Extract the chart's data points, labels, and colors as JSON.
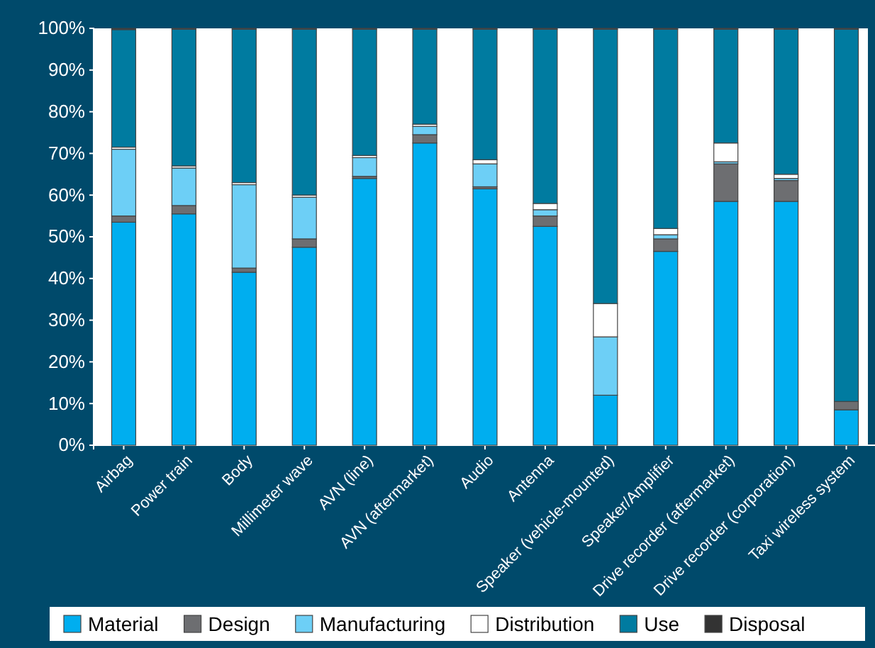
{
  "chart_data": {
    "type": "bar",
    "stacked": true,
    "categories": [
      "Airbag",
      "Power train",
      "Body",
      "Millimeter wave",
      "AVN (line)",
      "AVN (aftermarket)",
      "Audio",
      "Antenna",
      "Speaker (vehicle-mounted)",
      "Speaker/Amplifier",
      "Drive recorder (aftermarket)",
      "Drive recorder (corporation)",
      "Taxi wireless system"
    ],
    "series": [
      {
        "name": "Material",
        "color": "#00aeef",
        "values": [
          53.5,
          55.5,
          41.5,
          47.5,
          64,
          72.5,
          61.5,
          52.5,
          12,
          46.5,
          58.5,
          58.5,
          8.5
        ]
      },
      {
        "name": "Design",
        "color": "#6d6e71",
        "values": [
          1.5,
          2,
          1,
          2,
          0.5,
          2,
          0.5,
          2.5,
          0,
          3,
          9,
          5,
          2
        ]
      },
      {
        "name": "Manufacturing",
        "color": "#6dcff6",
        "values": [
          16,
          9,
          20,
          10,
          4.5,
          2,
          5.5,
          1.5,
          14,
          1,
          0.5,
          0.5,
          0
        ]
      },
      {
        "name": "Distribution",
        "color": "#ffffff",
        "values": [
          0.5,
          0.5,
          0.5,
          0.5,
          0.5,
          0.5,
          1,
          1.5,
          8,
          1.5,
          4.5,
          1,
          0
        ]
      },
      {
        "name": "Use",
        "color": "#007ba0",
        "values": [
          28.2,
          32.8,
          36.8,
          39.8,
          30.3,
          22.8,
          31.3,
          41.8,
          65.8,
          47.8,
          27.3,
          34.8,
          89.3
        ]
      },
      {
        "name": "Disposal",
        "color": "#333333",
        "values": [
          0.3,
          0.2,
          0.2,
          0.2,
          0.2,
          0.2,
          0.2,
          0.2,
          0.2,
          0.2,
          0.2,
          0.2,
          0.2
        ]
      }
    ],
    "ylim": [
      0,
      100
    ],
    "yticks": [
      {
        "value": 0,
        "label": "0%"
      },
      {
        "value": 10,
        "label": "10%"
      },
      {
        "value": 20,
        "label": "20%"
      },
      {
        "value": 30,
        "label": "30%"
      },
      {
        "value": 40,
        "label": "40%"
      },
      {
        "value": 50,
        "label": "50%"
      },
      {
        "value": 60,
        "label": "60%"
      },
      {
        "value": 70,
        "label": "70%"
      },
      {
        "value": 80,
        "label": "80%"
      },
      {
        "value": 90,
        "label": "90%"
      },
      {
        "value": 100,
        "label": "100%"
      }
    ],
    "legend": "bottom"
  }
}
